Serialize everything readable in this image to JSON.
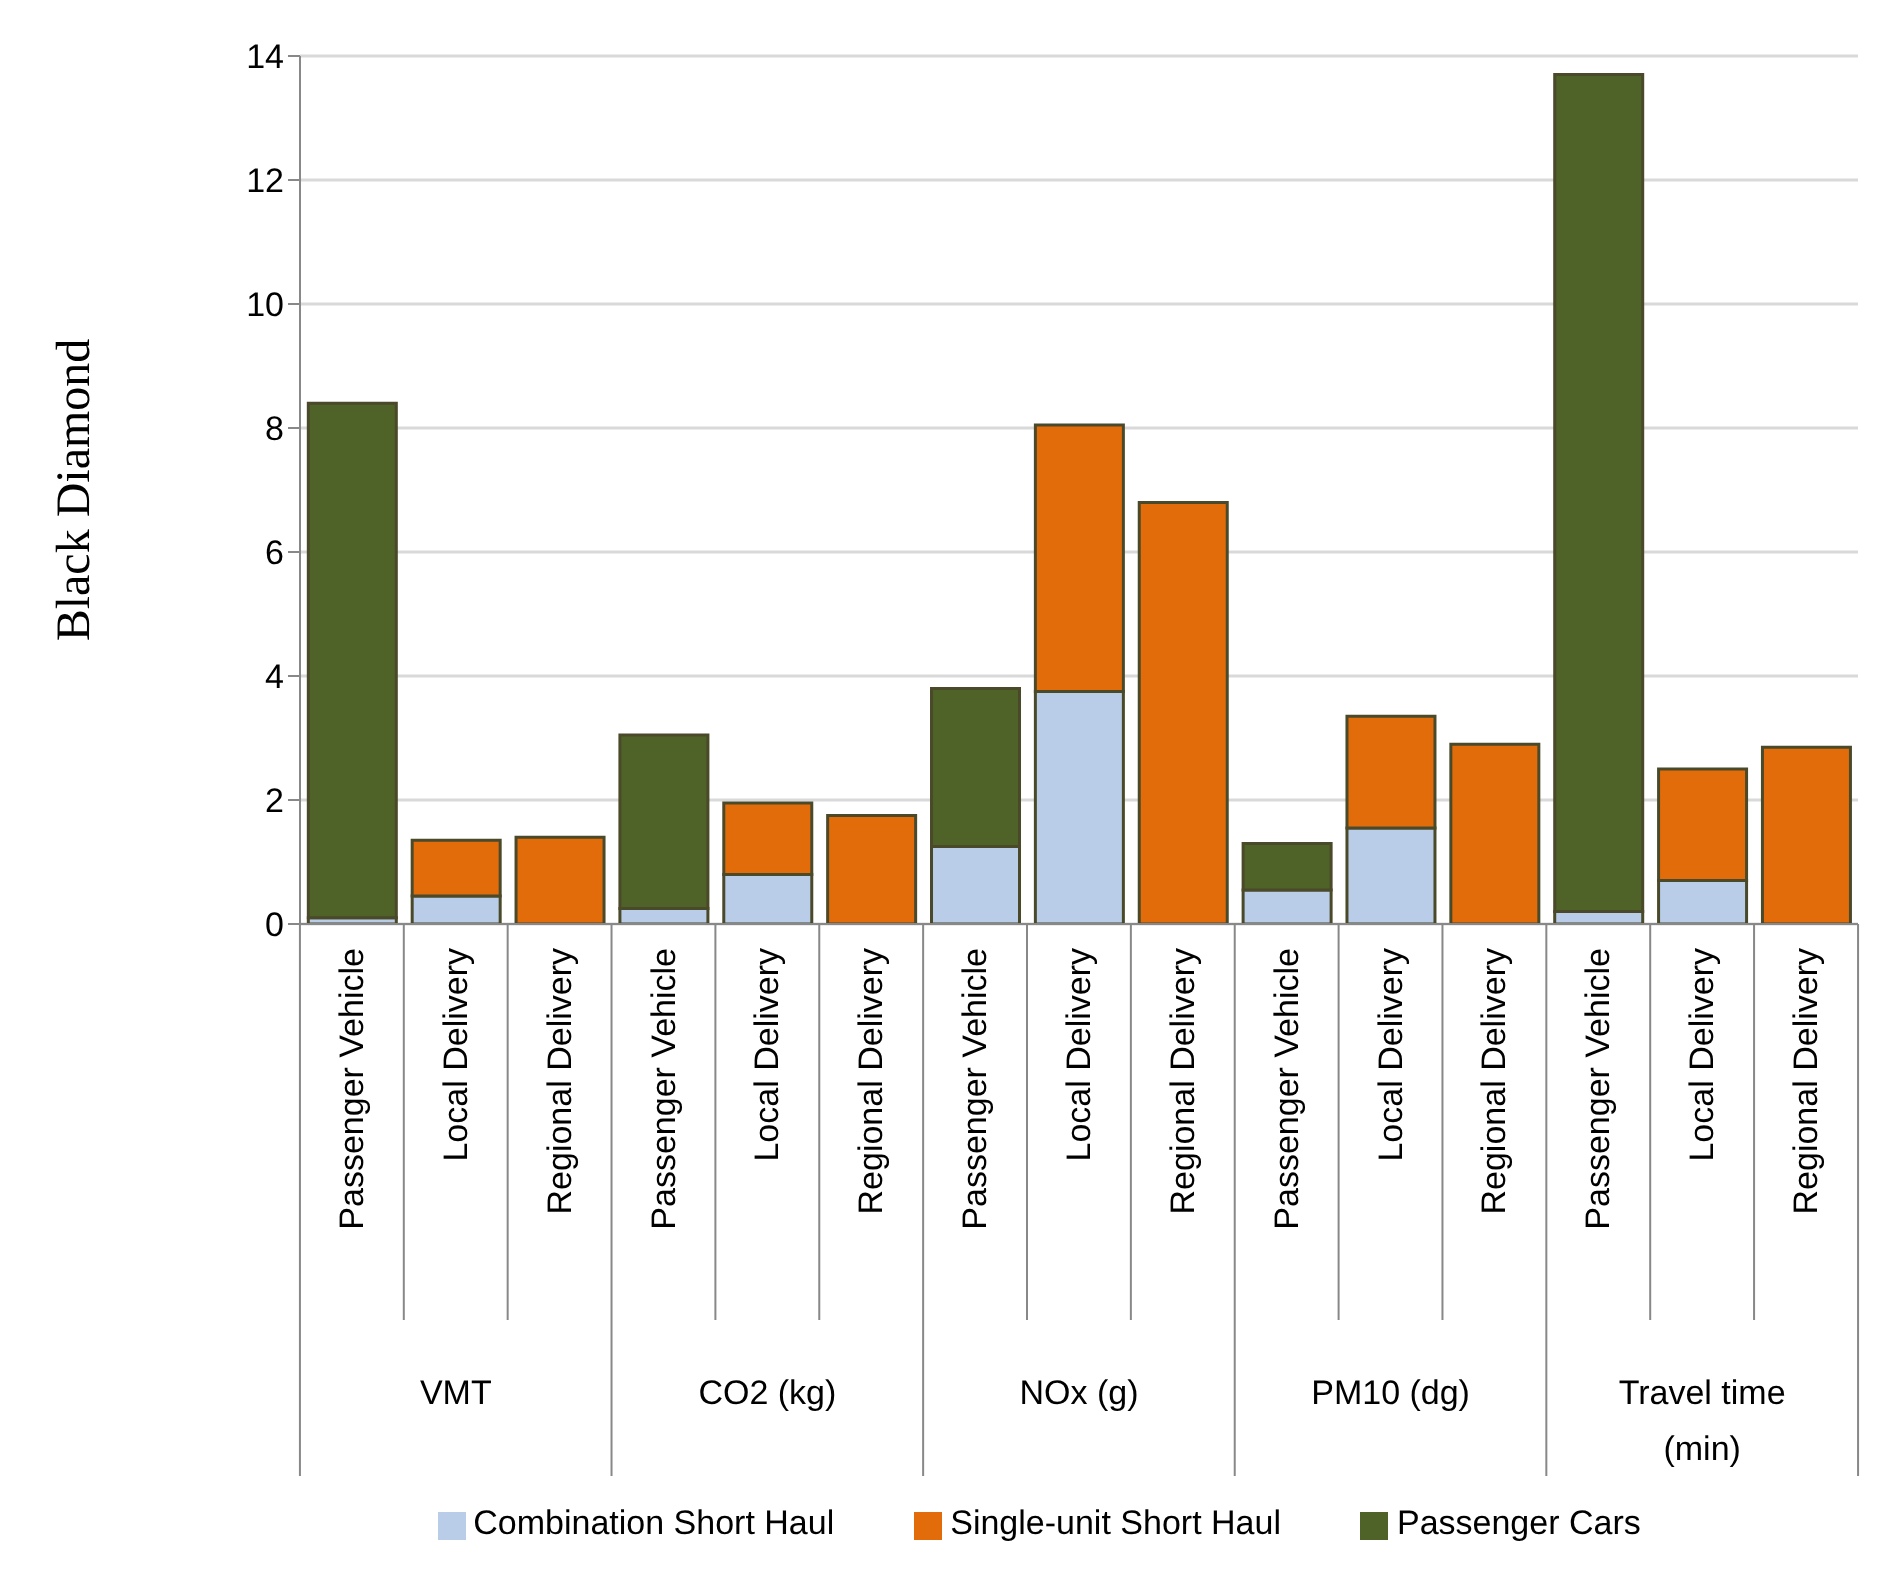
{
  "chart_data": {
    "type": "bar",
    "stacked": true,
    "ylabel": "Black Diamond",
    "categories": [
      "Passenger Vehicle",
      "Local Delivery",
      "Regional Delivery",
      "Passenger Vehicle",
      "Local Delivery",
      "Regional Delivery",
      "Passenger Vehicle",
      "Local Delivery",
      "Regional Delivery",
      "Passenger Vehicle",
      "Local Delivery",
      "Regional Delivery",
      "Passenger Vehicle",
      "Local Delivery",
      "Regional Delivery"
    ],
    "annotations": [
      "VMT",
      "CO2 (kg)",
      "NOx (g)",
      "PM10 (dg)",
      "Travel time (min)"
    ],
    "series": [
      {
        "name": "Combination Short Haul",
        "color": "#b9cde8",
        "values": [
          0.1,
          0.45,
          null,
          0.25,
          0.8,
          null,
          1.25,
          3.75,
          null,
          0.55,
          1.55,
          null,
          0.2,
          0.7,
          null
        ]
      },
      {
        "name": "Single-unit Short Haul",
        "color": "#e36c0a",
        "values": [
          null,
          0.9,
          1.4,
          null,
          1.15,
          1.75,
          null,
          4.3,
          6.8,
          null,
          1.8,
          2.9,
          null,
          1.8,
          2.85
        ]
      },
      {
        "name": "Passenger Cars",
        "color": "#4f6228",
        "values": [
          8.3,
          null,
          null,
          2.8,
          null,
          null,
          2.55,
          null,
          null,
          0.75,
          null,
          null,
          13.5,
          null,
          null
        ]
      }
    ],
    "ylim": [
      0,
      14
    ],
    "yticks": [
      0,
      2,
      4,
      6,
      8,
      10,
      12,
      14
    ],
    "grid": "y",
    "legend": "bottom"
  }
}
